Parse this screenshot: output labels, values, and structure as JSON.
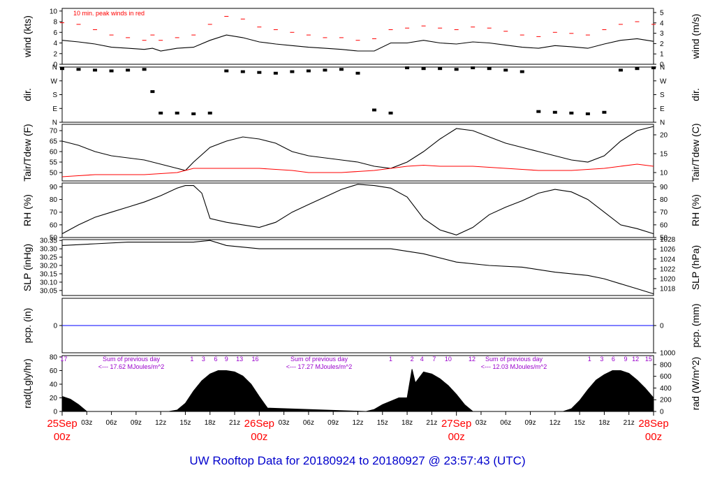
{
  "title": "UW Rooftop Data for 20180924  to  20180927 @ 23:57:43  (UTC)",
  "colors": {
    "axis": "#000000",
    "dew_point": "#ff0000",
    "peak_note": "#ff0000",
    "zero_line": "#0000ff",
    "rad_note": "#9900cc",
    "date_label": "#ff0000",
    "title": "#0000cc"
  },
  "x_axis": {
    "unit": "hours since 25Sep 00z",
    "range": [
      0,
      72
    ],
    "hour_ticks": [
      "03z",
      "06z",
      "09z",
      "12z",
      "15z",
      "18z",
      "21z",
      "03z",
      "06z",
      "09z",
      "12z",
      "15z",
      "18z",
      "21z",
      "03z",
      "06z",
      "09z",
      "12z",
      "15z",
      "18z",
      "21z"
    ],
    "hour_tick_hours": [
      3,
      6,
      9,
      12,
      15,
      18,
      21,
      27,
      30,
      33,
      36,
      39,
      42,
      45,
      51,
      54,
      57,
      60,
      63,
      66,
      69
    ],
    "date_labels": [
      {
        "hour": 0,
        "date": "25Sep",
        "time": "00z"
      },
      {
        "hour": 24,
        "date": "26Sep",
        "time": "00z"
      },
      {
        "hour": 48,
        "date": "27Sep",
        "time": "00z"
      },
      {
        "hour": 72,
        "date": "28Sep",
        "time": "00z"
      }
    ]
  },
  "panels": {
    "wind": {
      "left_label": "wind (kts)",
      "right_label": "wind (m/s)",
      "left_ticks": [
        "0",
        "2",
        "4",
        "6",
        "8",
        "10"
      ],
      "right_ticks": [
        "0",
        "1",
        "2",
        "3",
        "4",
        "5"
      ],
      "note": "10 min. peak winds in red"
    },
    "dir": {
      "left_label": "dir.",
      "right_label": "dir.",
      "ticks": [
        "N",
        "E",
        "S",
        "W",
        "N"
      ]
    },
    "temp": {
      "left_label": "Tair/Tdew (F)",
      "right_label": "Tair/Tdew (C)",
      "left_ticks": [
        "50",
        "55",
        "60",
        "65",
        "70"
      ],
      "right_ticks": [
        "10",
        "15",
        "20"
      ]
    },
    "rh": {
      "left_label": "RH (%)",
      "right_label": "RH (%)",
      "ticks": [
        "50",
        "60",
        "70",
        "80",
        "90"
      ]
    },
    "slp": {
      "left_label": "SLP (inHg)",
      "right_label": "SLP (hPa)",
      "left_ticks": [
        "30.05",
        "30.10",
        "30.15",
        "30.20",
        "30.25",
        "30.30",
        "30.35"
      ],
      "right_ticks": [
        "1018",
        "1020",
        "1022",
        "1024",
        "1026",
        "1028"
      ]
    },
    "pcp": {
      "left_label": "pcp. (in)",
      "right_label": "pcp. (mm)",
      "left_ticks": [
        "0"
      ],
      "right_ticks": [
        "0"
      ]
    },
    "rad": {
      "left_label": "rad(Lgly/hr)",
      "right_label": "rad (W/m^2)",
      "left_ticks": [
        "0",
        "20",
        "40",
        "60",
        "80"
      ],
      "right_ticks": [
        "0",
        "200",
        "400",
        "600",
        "800",
        "1000"
      ],
      "day_sums": [
        {
          "line1": "Sum of previous day",
          "line2": "<--- 17.62 MJoules/m^2"
        },
        {
          "line1": "Sum of previous day",
          "line2": "<--- 17.27 MJoules/m^2"
        },
        {
          "line1": "Sum of previous day",
          "line2": "<--- 12.03 MJoules/m^2"
        }
      ],
      "hour_marks": [
        {
          "hour": 0.2,
          "label": "17"
        },
        {
          "hour": 15.8,
          "label": "1"
        },
        {
          "hour": 17.2,
          "label": "3"
        },
        {
          "hour": 18.7,
          "label": "6"
        },
        {
          "hour": 20.0,
          "label": "9"
        },
        {
          "hour": 21.6,
          "label": "13"
        },
        {
          "hour": 23.5,
          "label": "16"
        },
        {
          "hour": 40.0,
          "label": "1"
        },
        {
          "hour": 42.6,
          "label": "2"
        },
        {
          "hour": 43.8,
          "label": "4"
        },
        {
          "hour": 45.3,
          "label": "7"
        },
        {
          "hour": 47.0,
          "label": "10"
        },
        {
          "hour": 49.9,
          "label": "12"
        },
        {
          "hour": 64.2,
          "label": "1"
        },
        {
          "hour": 65.7,
          "label": "3"
        },
        {
          "hour": 67.1,
          "label": "6"
        },
        {
          "hour": 68.6,
          "label": "9"
        },
        {
          "hour": 69.8,
          "label": "12"
        },
        {
          "hour": 71.4,
          "label": "15"
        }
      ]
    }
  },
  "chart_data": [
    {
      "type": "line",
      "panel": "wind",
      "ylabel": "wind (kts)",
      "ylim": [
        0,
        10.5
      ],
      "x": [
        0,
        2,
        4,
        6,
        8,
        10,
        11,
        12,
        14,
        16,
        18,
        20,
        22,
        24,
        26,
        28,
        30,
        32,
        34,
        36,
        38,
        40,
        42,
        44,
        46,
        48,
        50,
        52,
        54,
        56,
        58,
        60,
        62,
        64,
        66,
        68,
        70,
        72
      ],
      "series": [
        {
          "name": "wind",
          "values": [
            4.5,
            4.2,
            3.8,
            3.2,
            3.0,
            2.8,
            3.0,
            2.5,
            3.0,
            3.2,
            4.5,
            5.5,
            5.0,
            4.2,
            3.8,
            3.5,
            3.2,
            3.0,
            2.8,
            2.5,
            2.5,
            4.0,
            4.0,
            4.5,
            4.0,
            3.8,
            4.2,
            4.0,
            3.6,
            3.2,
            3.0,
            3.5,
            3.3,
            3.0,
            3.8,
            4.5,
            4.8,
            4.3
          ]
        },
        {
          "name": "10 min. peak winds in red",
          "values": [
            7.8,
            7.5,
            6.5,
            5.5,
            5.0,
            4.5,
            5.5,
            4.5,
            5.0,
            5.5,
            7.5,
            9.0,
            8.5,
            7.0,
            6.5,
            6.0,
            5.5,
            5.0,
            5.0,
            4.5,
            4.8,
            6.5,
            6.8,
            7.2,
            6.8,
            6.5,
            7.0,
            6.8,
            6.2,
            5.5,
            5.2,
            6.0,
            5.8,
            5.5,
            6.5,
            7.5,
            8.0,
            7.5
          ]
        }
      ]
    },
    {
      "type": "scatter",
      "panel": "dir",
      "ylim": [
        0,
        360
      ],
      "x": [
        0,
        2,
        4,
        6,
        8,
        10,
        11,
        12,
        14,
        16,
        18,
        20,
        22,
        24,
        26,
        28,
        30,
        32,
        34,
        36,
        38,
        40,
        42,
        44,
        46,
        48,
        50,
        52,
        54,
        56,
        58,
        60,
        62,
        64,
        66,
        68,
        70,
        72
      ],
      "values": [
        350,
        345,
        340,
        335,
        340,
        345,
        200,
        60,
        60,
        55,
        60,
        335,
        330,
        325,
        320,
        330,
        335,
        340,
        345,
        320,
        80,
        60,
        355,
        350,
        350,
        345,
        355,
        350,
        340,
        330,
        70,
        65,
        60,
        55,
        65,
        340,
        350,
        355
      ]
    },
    {
      "type": "line",
      "panel": "temp",
      "ylabel": "Tair/Tdew (F)",
      "ylim": [
        46,
        73
      ],
      "x": [
        0,
        2,
        4,
        6,
        8,
        10,
        12,
        14,
        15,
        16,
        18,
        20,
        22,
        24,
        26,
        28,
        30,
        32,
        34,
        36,
        38,
        40,
        42,
        44,
        46,
        48,
        50,
        52,
        54,
        56,
        58,
        60,
        62,
        64,
        66,
        68,
        70,
        72
      ],
      "series": [
        {
          "name": "Tair",
          "values": [
            65,
            63,
            60,
            58,
            57,
            56,
            54,
            52,
            51,
            55,
            62,
            65,
            67,
            66,
            64,
            60,
            58,
            57,
            56,
            55,
            53,
            52,
            55,
            60,
            66,
            71,
            70,
            67,
            64,
            62,
            60,
            58,
            56,
            55,
            58,
            65,
            70,
            72
          ]
        },
        {
          "name": "Tdew",
          "values": [
            48,
            48.5,
            49,
            49,
            49,
            49,
            49.5,
            50,
            51,
            52,
            52,
            52,
            52,
            52,
            51.5,
            51,
            50,
            50,
            50,
            50.5,
            51,
            52,
            53,
            53.5,
            53,
            53,
            53,
            52.5,
            52,
            51.5,
            51,
            51,
            51,
            51.5,
            52,
            53,
            54,
            53
          ]
        }
      ]
    },
    {
      "type": "line",
      "panel": "rh",
      "ylabel": "RH (%)",
      "ylim": [
        50,
        93
      ],
      "x": [
        0,
        2,
        4,
        6,
        8,
        10,
        12,
        14,
        15,
        16,
        17,
        18,
        20,
        22,
        24,
        26,
        28,
        30,
        32,
        34,
        36,
        38,
        40,
        42,
        44,
        46,
        48,
        50,
        52,
        54,
        56,
        58,
        60,
        62,
        64,
        66,
        68,
        70,
        72
      ],
      "series": [
        {
          "name": "RH",
          "values": [
            53,
            60,
            66,
            70,
            74,
            78,
            83,
            89,
            91,
            91,
            85,
            65,
            62,
            60,
            58,
            62,
            70,
            76,
            82,
            88,
            92,
            91,
            89,
            82,
            65,
            56,
            52,
            58,
            68,
            74,
            79,
            85,
            88,
            86,
            80,
            70,
            60,
            57,
            53
          ]
        }
      ]
    },
    {
      "type": "line",
      "panel": "slp",
      "ylabel": "SLP (inHg)",
      "ylim": [
        30.02,
        30.355
      ],
      "x": [
        0,
        4,
        8,
        12,
        16,
        18,
        20,
        24,
        28,
        32,
        36,
        40,
        44,
        48,
        52,
        56,
        60,
        64,
        66,
        68,
        70,
        72
      ],
      "series": [
        {
          "name": "SLP",
          "values": [
            30.32,
            30.33,
            30.34,
            30.34,
            30.34,
            30.35,
            30.32,
            30.3,
            30.3,
            30.3,
            30.3,
            30.3,
            30.27,
            30.22,
            30.2,
            30.19,
            30.16,
            30.14,
            30.12,
            30.09,
            30.06,
            30.03
          ]
        }
      ]
    },
    {
      "type": "line",
      "panel": "pcp",
      "ylabel": "pcp. (in)",
      "x": [
        0,
        72
      ],
      "series": [
        {
          "name": "pcp",
          "values": [
            0,
            0
          ]
        }
      ]
    },
    {
      "type": "area",
      "panel": "rad",
      "ylabel": "rad(Lgly/hr)",
      "ylim": [
        0,
        82
      ],
      "x": [
        0,
        1,
        2,
        3,
        13,
        14,
        15,
        16,
        17,
        18,
        19,
        20,
        21,
        22,
        23,
        24,
        25,
        37,
        38,
        39,
        40,
        41,
        42,
        42.6,
        43,
        44,
        45,
        46,
        47,
        48,
        49,
        50,
        61,
        62,
        63,
        64,
        65,
        66,
        67,
        68,
        69,
        70,
        71,
        72
      ],
      "series": [
        {
          "name": "radiation",
          "values": [
            22,
            18,
            10,
            0,
            0,
            2,
            12,
            30,
            45,
            55,
            60,
            60,
            58,
            52,
            40,
            22,
            5,
            0,
            3,
            10,
            15,
            20,
            20,
            62,
            42,
            58,
            55,
            48,
            38,
            25,
            10,
            0,
            0,
            4,
            16,
            32,
            46,
            54,
            60,
            60,
            56,
            46,
            34,
            20
          ]
        }
      ]
    }
  ]
}
